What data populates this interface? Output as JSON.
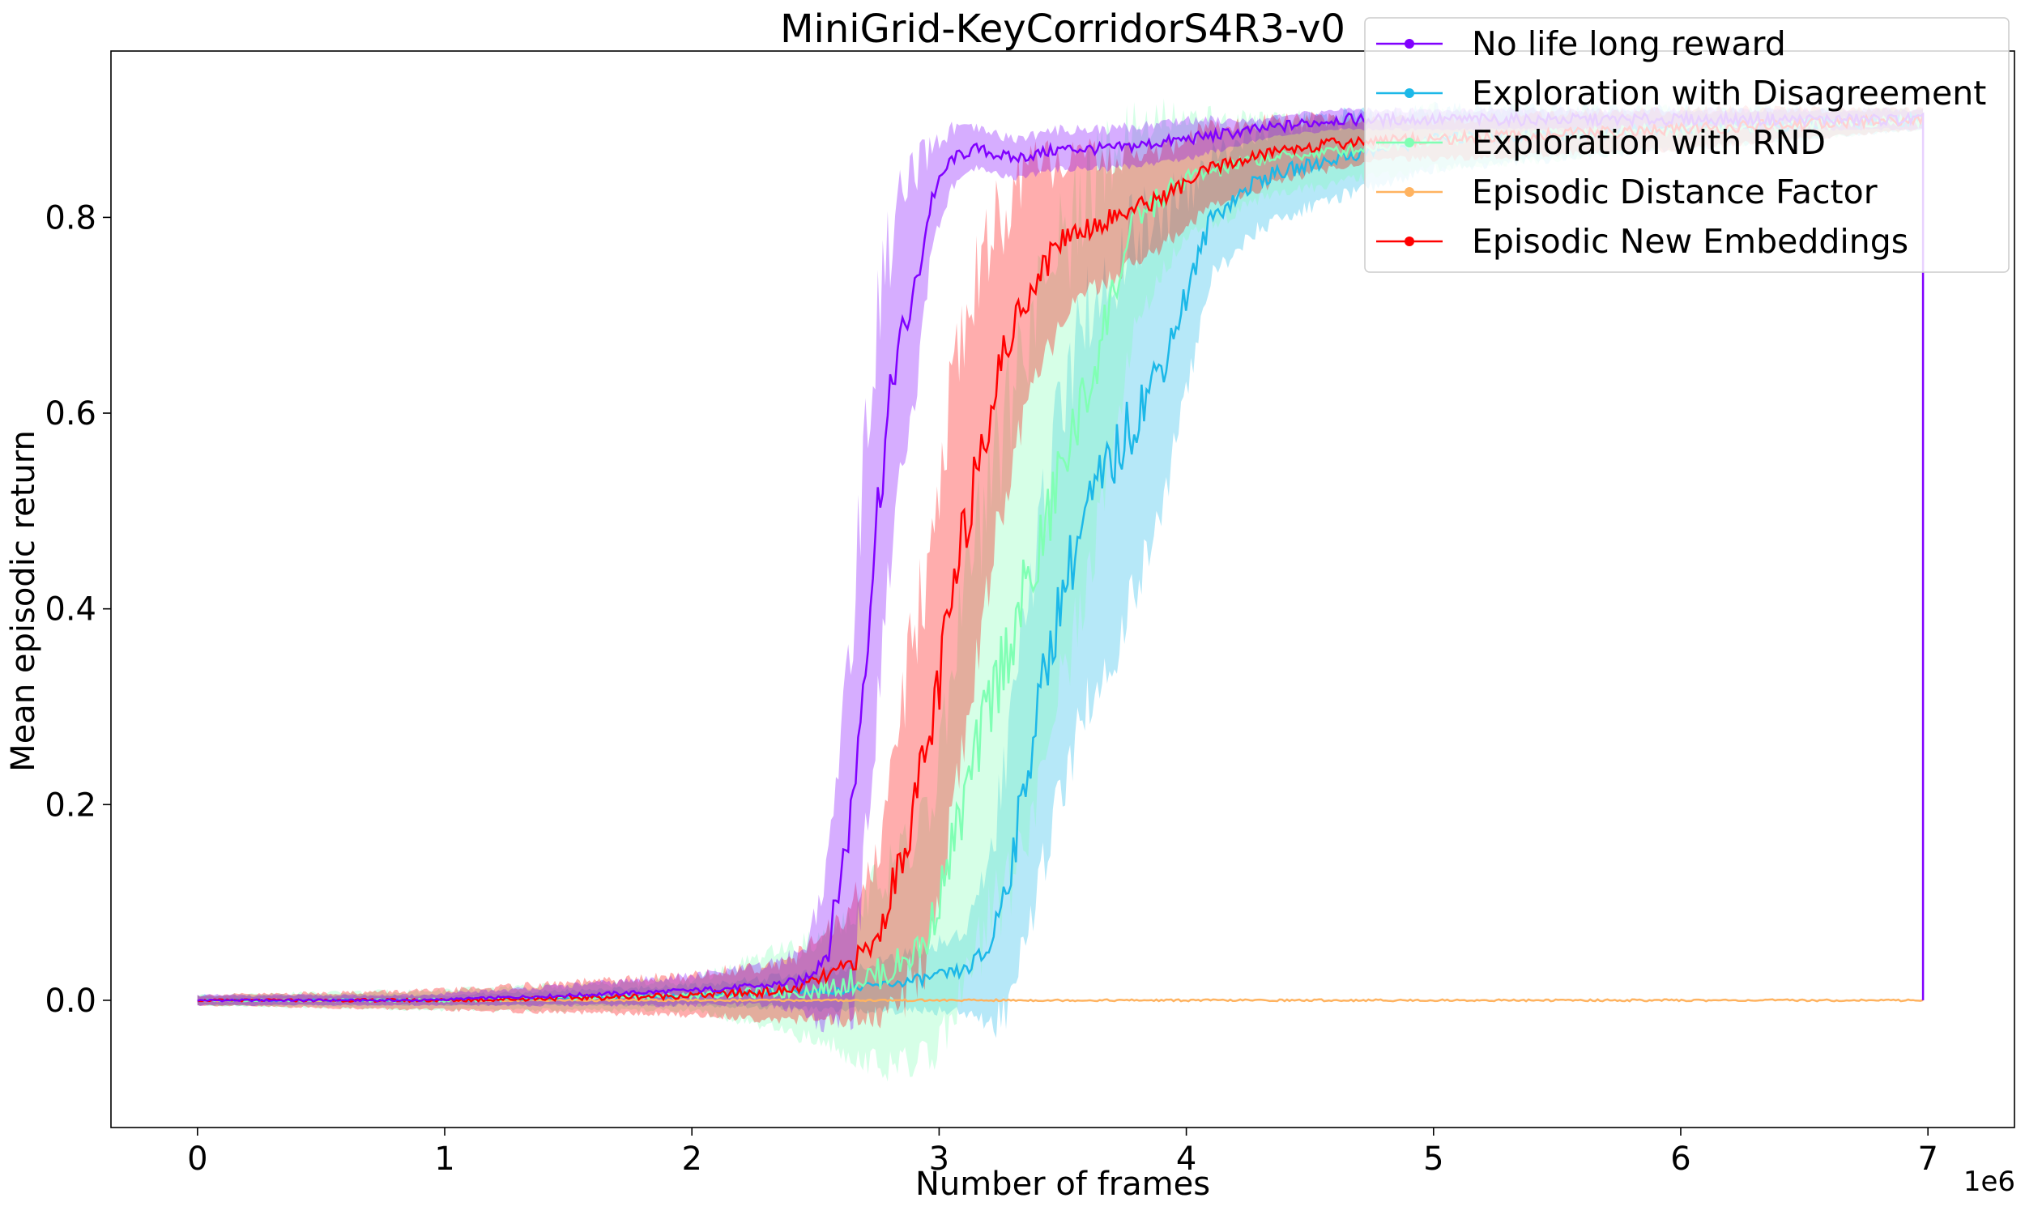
{
  "chart_data": {
    "type": "line",
    "title": "MiniGrid-KeyCorridorS4R3-v0",
    "xlabel": "Number of frames",
    "ylabel": "Mean episodic return",
    "x_offset_label": "1e6",
    "xlim": [
      -0.35,
      7.35
    ],
    "ylim": [
      -0.13,
      0.97
    ],
    "xticks": [
      0,
      1,
      2,
      3,
      4,
      5,
      6,
      7
    ],
    "xtick_labels": [
      "0",
      "1",
      "2",
      "3",
      "4",
      "5",
      "6",
      "7"
    ],
    "yticks": [
      0.0,
      0.2,
      0.4,
      0.6,
      0.8
    ],
    "ytick_labels": [
      "0.0",
      "0.2",
      "0.4",
      "0.6",
      "0.8"
    ],
    "grid": false,
    "legend_position": "top-right",
    "series": [
      {
        "name": "No life long reward",
        "color": "#8000ff",
        "x": [
          0,
          0.9,
          1.5,
          2.0,
          2.3,
          2.45,
          2.55,
          2.65,
          2.75,
          2.82,
          2.9,
          2.97,
          3.05,
          3.15,
          3.3,
          3.5,
          3.7,
          4.0,
          4.3,
          4.6,
          5.0,
          6.0,
          6.98
        ],
        "y": [
          0,
          0,
          0.005,
          0.01,
          0.015,
          0.02,
          0.05,
          0.2,
          0.5,
          0.65,
          0.72,
          0.82,
          0.86,
          0.87,
          0.86,
          0.87,
          0.87,
          0.88,
          0.89,
          0.9,
          0.9,
          0.9,
          0.9
        ],
        "band": [
          0.005,
          0.005,
          0.01,
          0.015,
          0.02,
          0.03,
          0.08,
          0.2,
          0.2,
          0.15,
          0.12,
          0.05,
          0.03,
          0.02,
          0.02,
          0.02,
          0.02,
          0.02,
          0.01,
          0.01,
          0.01,
          0.01,
          0.01
        ]
      },
      {
        "name": "Exploration with Disagreement",
        "color": "#1cb8e8",
        "x": [
          0,
          1.0,
          2.0,
          2.6,
          2.9,
          3.1,
          3.2,
          3.3,
          3.4,
          3.5,
          3.6,
          3.7,
          3.8,
          3.9,
          4.0,
          4.1,
          4.3,
          4.6,
          5.0,
          6.0,
          6.98
        ],
        "y": [
          0,
          0,
          0.005,
          0.01,
          0.02,
          0.03,
          0.05,
          0.15,
          0.3,
          0.42,
          0.5,
          0.55,
          0.6,
          0.65,
          0.72,
          0.8,
          0.84,
          0.86,
          0.88,
          0.89,
          0.9
        ],
        "band": [
          0.005,
          0.005,
          0.01,
          0.02,
          0.03,
          0.04,
          0.08,
          0.15,
          0.18,
          0.2,
          0.2,
          0.2,
          0.18,
          0.15,
          0.1,
          0.06,
          0.05,
          0.04,
          0.03,
          0.02,
          0.01
        ]
      },
      {
        "name": "Exploration with RND",
        "color": "#80ffb4",
        "x": [
          0,
          1.0,
          2.0,
          2.5,
          2.8,
          2.95,
          3.1,
          3.2,
          3.3,
          3.4,
          3.5,
          3.6,
          3.7,
          3.8,
          4.0,
          4.3,
          4.7,
          5.0,
          6.0,
          6.98
        ],
        "y": [
          0,
          0,
          0.005,
          0.01,
          0.03,
          0.06,
          0.2,
          0.3,
          0.38,
          0.45,
          0.55,
          0.62,
          0.72,
          0.8,
          0.84,
          0.86,
          0.87,
          0.88,
          0.89,
          0.9
        ],
        "band": [
          0.005,
          0.01,
          0.015,
          0.05,
          0.1,
          0.12,
          0.2,
          0.22,
          0.25,
          0.25,
          0.22,
          0.2,
          0.15,
          0.1,
          0.06,
          0.04,
          0.03,
          0.03,
          0.02,
          0.01
        ]
      },
      {
        "name": "Episodic Distance Factor",
        "color": "#ffb360",
        "x": [
          0,
          6.98
        ],
        "y": [
          0,
          0
        ],
        "band": [
          0,
          0
        ]
      },
      {
        "name": "Episodic New Embeddings",
        "color": "#ff0000",
        "x": [
          0,
          1.0,
          2.0,
          2.4,
          2.6,
          2.75,
          2.85,
          2.95,
          3.05,
          3.15,
          3.25,
          3.35,
          3.5,
          3.7,
          3.9,
          4.1,
          4.4,
          4.8,
          5.0,
          6.0,
          6.98
        ],
        "y": [
          0,
          0,
          0.005,
          0.01,
          0.03,
          0.06,
          0.15,
          0.25,
          0.4,
          0.55,
          0.65,
          0.72,
          0.78,
          0.8,
          0.82,
          0.85,
          0.87,
          0.88,
          0.88,
          0.89,
          0.9
        ],
        "band": [
          0.005,
          0.01,
          0.02,
          0.03,
          0.05,
          0.08,
          0.15,
          0.2,
          0.22,
          0.2,
          0.15,
          0.12,
          0.08,
          0.06,
          0.05,
          0.04,
          0.03,
          0.02,
          0.02,
          0.02,
          0.01
        ]
      }
    ]
  }
}
